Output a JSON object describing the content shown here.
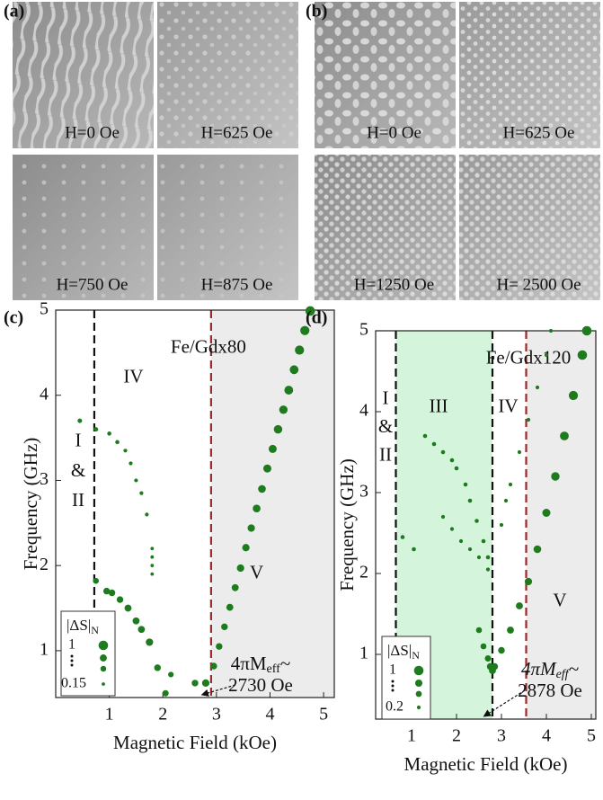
{
  "panels": [
    {
      "label": "(a)",
      "images": [
        "H=0 Oe",
        "H=625 Oe",
        "H=750 Oe",
        "H=875 Oe"
      ]
    },
    {
      "label": "(b)",
      "images": [
        "H=0 Oe",
        "H=625 Oe",
        "H=1250 Oe",
        "H= 2500 Oe"
      ]
    }
  ],
  "chart_data": [
    {
      "type": "scatter",
      "panel": "(c)",
      "sample": "Fe/Gdx80",
      "xlabel": "Magnetic Field (kOe)",
      "ylabel": "Frequency (GHz)",
      "xlim": [
        0,
        5.2
      ],
      "ylim": [
        0.45,
        5
      ],
      "xticks": [
        1,
        2,
        3,
        4,
        5
      ],
      "yticks": [
        1,
        2,
        3,
        4,
        5
      ],
      "series": [
        {
          "color": "#1e7b1e",
          "x": [
            0.45,
            0.75,
            1.0,
            1.15,
            1.3,
            1.4,
            1.5,
            1.6,
            1.7,
            1.8,
            1.8,
            1.8,
            1.8,
            0.75,
            0.95,
            1.05,
            1.2,
            1.35,
            1.5,
            1.6,
            1.75,
            1.9,
            2.05,
            2.15,
            2.6,
            2.8,
            2.95,
            3.05,
            3.15,
            3.25,
            3.35,
            3.45,
            3.55,
            3.65,
            3.75,
            3.85,
            3.95,
            4.05,
            4.15,
            4.25,
            4.35,
            4.45,
            4.55,
            4.65,
            4.75
          ],
          "values": [
            3.7,
            3.6,
            3.55,
            3.45,
            3.35,
            3.2,
            3.0,
            2.85,
            2.6,
            2.2,
            2.1,
            2.0,
            1.9,
            1.82,
            1.7,
            1.68,
            1.6,
            1.5,
            1.35,
            1.25,
            1.1,
            0.8,
            0.5,
            0.72,
            0.62,
            0.62,
            0.82,
            1.05,
            1.28,
            1.51,
            1.74,
            1.97,
            2.21,
            2.44,
            2.67,
            2.9,
            3.14,
            3.37,
            3.6,
            3.83,
            4.06,
            4.3,
            4.53,
            4.76,
            4.99
          ],
          "sizes": [
            0.3,
            0.3,
            0.25,
            0.25,
            0.2,
            0.2,
            0.2,
            0.2,
            0.2,
            0.15,
            0.15,
            0.15,
            0.15,
            0.5,
            0.6,
            0.6,
            0.6,
            0.65,
            0.65,
            0.65,
            0.7,
            0.6,
            0.55,
            0.45,
            0.6,
            0.7,
            0.6,
            0.6,
            0.6,
            0.65,
            0.65,
            0.7,
            0.7,
            0.7,
            0.75,
            0.75,
            0.8,
            0.8,
            0.85,
            0.85,
            0.9,
            0.9,
            0.95,
            0.95,
            1
          ]
        }
      ],
      "regions": [
        {
          "from": 2.9,
          "to": 5.2,
          "color": "#ececec"
        }
      ],
      "vlines": [
        {
          "x": 0.72,
          "color": "#111111"
        },
        {
          "x": 2.9,
          "color": "#9b2a2a"
        }
      ],
      "region_labels": [
        "I",
        "&",
        "II",
        "IV",
        "V"
      ],
      "meff": [
        "4πM",
        "eff",
        "~"
      ],
      "meff_value": "2730 Oe",
      "size_legend": {
        "title": "|ΔS|",
        "title_sub": "N",
        "values": [
          1,
          0.15
        ]
      }
    },
    {
      "type": "scatter",
      "panel": "(d)",
      "sample": "Fe/Gdx120",
      "xlabel": "Magnetic Field (kOe)",
      "ylabel": "Frequency (GHz)",
      "xlim": [
        0.2,
        5.1
      ],
      "ylim": [
        0.2,
        5
      ],
      "xticks": [
        1,
        2,
        3,
        4,
        5
      ],
      "yticks": [
        1,
        2,
        3,
        4,
        5
      ],
      "series": [
        {
          "color": "#1e7b1e",
          "x": [
            0.8,
            1.05,
            1.3,
            1.5,
            1.7,
            1.9,
            2.0,
            2.2,
            2.3,
            2.45,
            2.6,
            2.7,
            1.7,
            1.9,
            2.1,
            2.3,
            2.5,
            2.7,
            2.5,
            2.6,
            2.7,
            2.75,
            2.8,
            2.85,
            3.0,
            3.2,
            3.4,
            3.6,
            3.8,
            4.0,
            4.2,
            4.4,
            4.6,
            4.8,
            4.9,
            3.0,
            3.1,
            3.2,
            3.4,
            3.6,
            3.8,
            4.0,
            4.1
          ],
          "values": [
            2.45,
            2.3,
            3.7,
            3.6,
            3.5,
            3.4,
            3.3,
            3.1,
            2.9,
            2.65,
            2.4,
            2.2,
            2.7,
            2.55,
            2.4,
            2.3,
            2.2,
            2.05,
            1.3,
            1.1,
            0.95,
            0.85,
            0.8,
            0.85,
            1.05,
            1.3,
            1.6,
            1.9,
            2.3,
            2.75,
            3.2,
            3.7,
            4.2,
            4.7,
            5.0,
            2.6,
            2.9,
            3.1,
            3.5,
            3.9,
            4.3,
            4.7,
            5.0
          ],
          "sizes": [
            0.25,
            0.25,
            0.25,
            0.25,
            0.25,
            0.25,
            0.25,
            0.25,
            0.25,
            0.25,
            0.25,
            0.25,
            0.2,
            0.2,
            0.2,
            0.2,
            0.2,
            0.2,
            0.5,
            0.5,
            0.55,
            0.6,
            0.65,
            0.6,
            0.6,
            0.65,
            0.65,
            0.7,
            0.75,
            0.8,
            0.85,
            0.9,
            0.95,
            1,
            1,
            0.2,
            0.2,
            0.2,
            0.2,
            0.2,
            0.2,
            0.2,
            0.2
          ]
        }
      ],
      "regions": [
        {
          "from": 0.65,
          "to": 2.8,
          "color": "#d4f5dc"
        },
        {
          "from": 3.55,
          "to": 5.1,
          "color": "#ececec"
        }
      ],
      "vlines": [
        {
          "x": 0.65,
          "color": "#111111"
        },
        {
          "x": 2.8,
          "color": "#111111"
        },
        {
          "x": 3.55,
          "color": "#9b2a2a"
        }
      ],
      "region_labels": [
        "I",
        "&",
        "II",
        "III",
        "IV",
        "V"
      ],
      "meff": [
        "4πM",
        "eff",
        "~"
      ],
      "meff_value": "2878 Oe",
      "size_legend": {
        "title": "|ΔS|",
        "title_sub": "N",
        "values": [
          1,
          0.2
        ]
      }
    }
  ]
}
